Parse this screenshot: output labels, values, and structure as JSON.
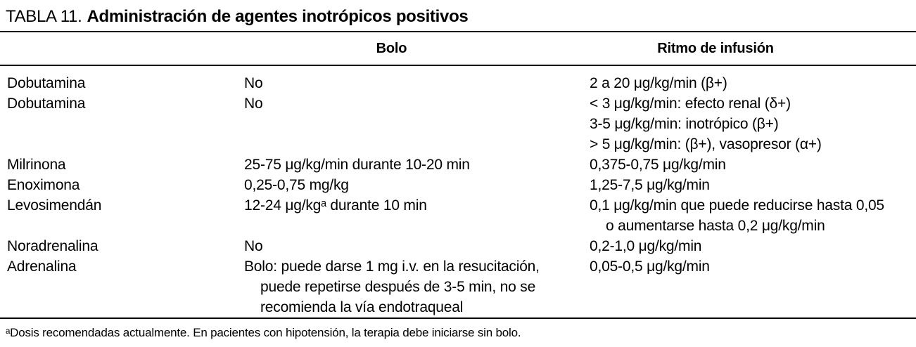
{
  "colors": {
    "text": "#000000",
    "background": "#ffffff"
  },
  "title": {
    "label": "TABLA 11.",
    "caption": "Administración de agentes inotrópicos positivos"
  },
  "table": {
    "headers": {
      "drug": "",
      "bolo": "Bolo",
      "ritmo": "Ritmo de infusión"
    },
    "rows": [
      {
        "drug": "Dobutamina",
        "bolo": [
          "No"
        ],
        "ritmo": [
          "2 a 20 μg/kg/min (β+)"
        ]
      },
      {
        "drug": "Dobutamina",
        "bolo": [
          "No"
        ],
        "ritmo": [
          "< 3 μg/kg/min: efecto renal (δ+)",
          "3-5 μg/kg/min: inotrópico (β+)",
          "> 5 μg/kg/min: (β+), vasopresor (α+)"
        ]
      },
      {
        "drug": "Milrinona",
        "bolo": [
          "25-75 μg/kg/min durante 10-20 min"
        ],
        "ritmo": [
          "0,375-0,75 μg/kg/min"
        ]
      },
      {
        "drug": "Enoximona",
        "bolo": [
          "0,25-0,75 mg/kg"
        ],
        "ritmo": [
          "1,25-7,5 μg/kg/min"
        ]
      },
      {
        "drug": "Levosimendán",
        "bolo": [
          "12-24 μg/kgᵃ durante 10 min"
        ],
        "ritmo": [
          "0,1 μg/kg/min que puede reducirse hasta 0,05",
          "o aumentarse hasta 0,2 μg/kg/min"
        ]
      },
      {
        "drug": "Noradrenalina",
        "bolo": [
          "No"
        ],
        "ritmo": [
          "0,2-1,0 μg/kg/min"
        ]
      },
      {
        "drug": "Adrenalina",
        "bolo": [
          "Bolo: puede darse 1 mg i.v. en la resucitación,",
          "puede repetirse después de 3-5 min, no se",
          "recomienda la vía endotraqueal"
        ],
        "ritmo": [
          "0,05-0,5 μg/kg/min"
        ]
      }
    ]
  },
  "footnote": "ᵃDosis recomendadas actualmente. En pacientes con hipotensión, la terapia debe iniciarse sin bolo."
}
